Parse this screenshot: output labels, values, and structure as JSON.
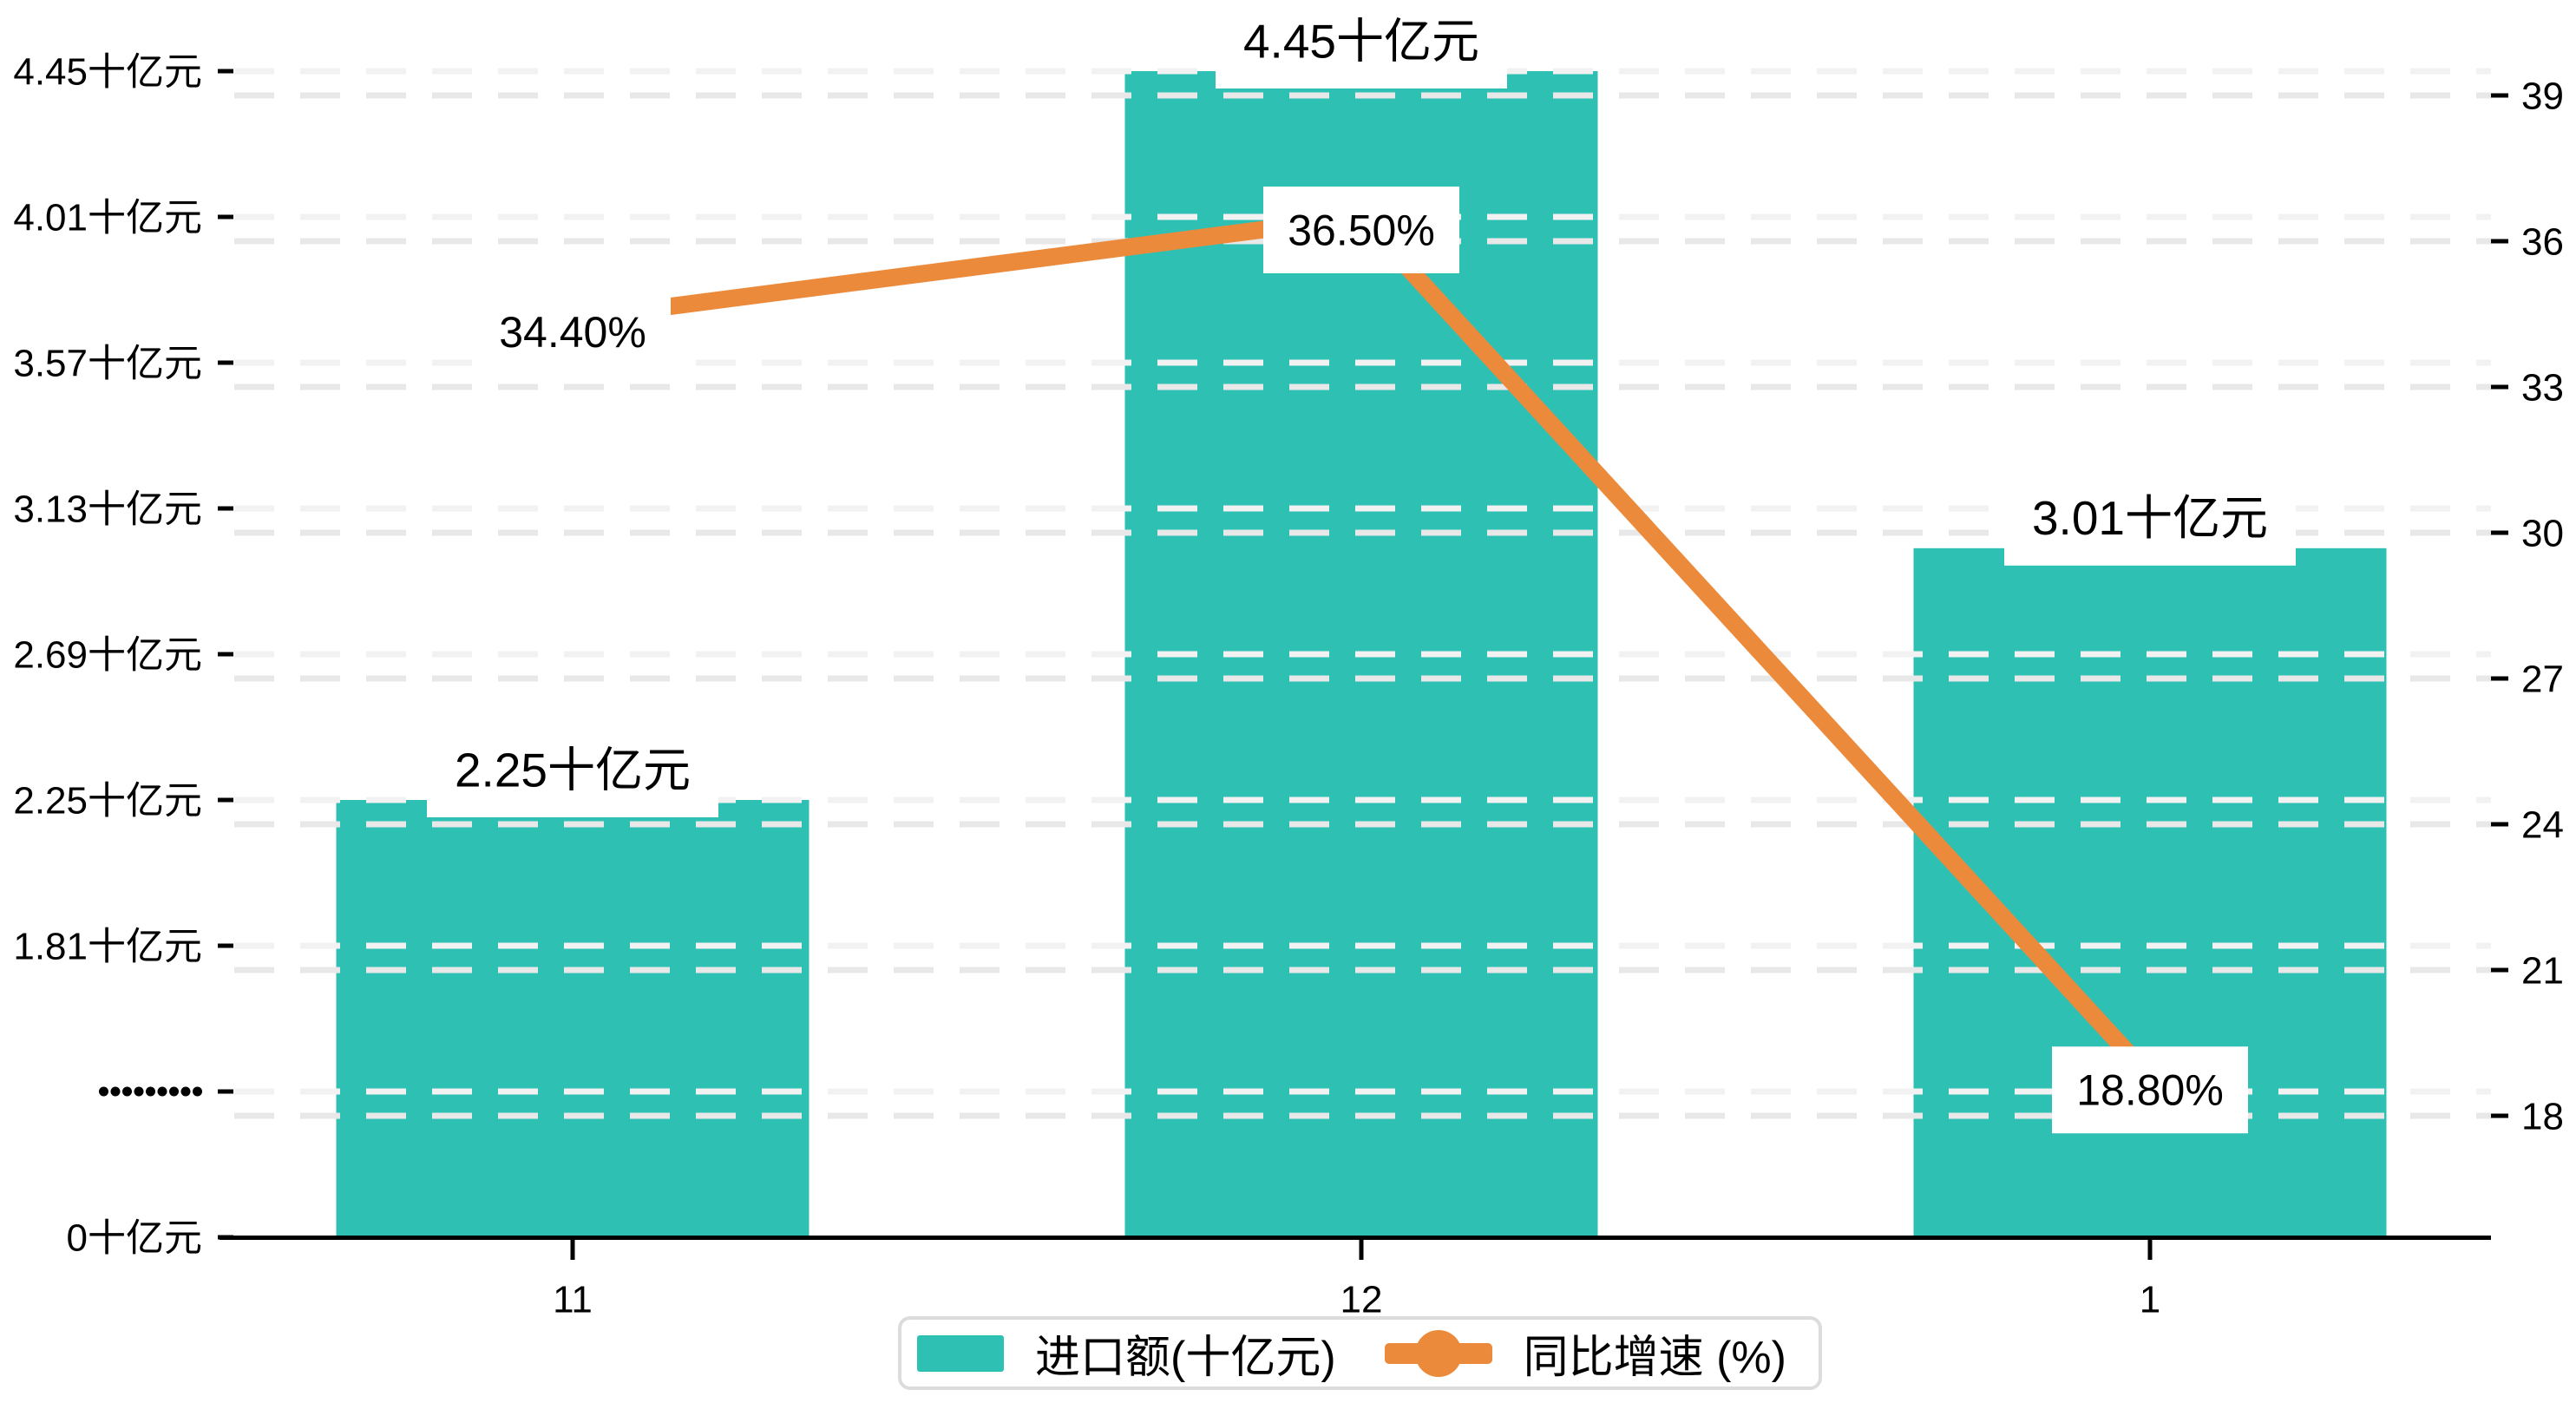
{
  "chart_data": {
    "type": "bar",
    "subtype": "combo-bar-line-dual-axis",
    "categories": [
      "11",
      "12",
      "1"
    ],
    "series": [
      {
        "name": "进口额(十亿元)",
        "type": "bar",
        "axis": "left",
        "values": [
          2.25,
          4.45,
          3.01
        ],
        "labels": [
          "2.25十亿元",
          "4.45十亿元",
          "3.01十亿元"
        ],
        "color": "#2FC0B4"
      },
      {
        "name": "同比增速 (%)",
        "type": "line",
        "axis": "right",
        "values": [
          34.4,
          36.5,
          18.8
        ],
        "labels": [
          "34.40%",
          "36.50%",
          "18.80%"
        ],
        "color": "#EC8A3B"
      }
    ],
    "left_axis": {
      "tick_labels": [
        "0十亿元",
        "·········",
        "1.81十亿元",
        "2.25十亿元",
        "2.69十亿元",
        "3.13十亿元",
        "3.57十亿元",
        "4.01十亿元",
        "4.45十亿元"
      ],
      "tick_values": [
        0,
        null,
        1.81,
        2.25,
        2.69,
        3.13,
        3.57,
        4.01,
        4.45
      ],
      "axis_break_between": [
        0,
        1.81
      ]
    },
    "right_axis": {
      "tick_labels": [
        "18",
        "21",
        "24",
        "27",
        "30",
        "33",
        "36",
        "39"
      ],
      "range": [
        18,
        39
      ],
      "step": 3
    },
    "x_axis": {
      "labels": [
        "11",
        "12",
        "1"
      ]
    },
    "legend": {
      "position": "bottom-center",
      "items": [
        {
          "label": "进口额(十亿元)",
          "marker": "bar-swatch",
          "color": "#2FC0B4"
        },
        {
          "label": "同比增速 (%)",
          "marker": "line-dot",
          "color": "#EC8A3B"
        }
      ]
    },
    "grid": {
      "style": "horizontal dashed",
      "visible": true
    },
    "colors": {
      "bar": "#2FC0B4",
      "line": "#EC8A3B",
      "grid_left": "#F2F2F2",
      "grid_right": "#E8E8E8",
      "axis": "#000000",
      "text": "#000000",
      "label_bg": "#FFFFFF",
      "legend_border": "#DCDCDC",
      "background": "#FFFFFF"
    }
  }
}
